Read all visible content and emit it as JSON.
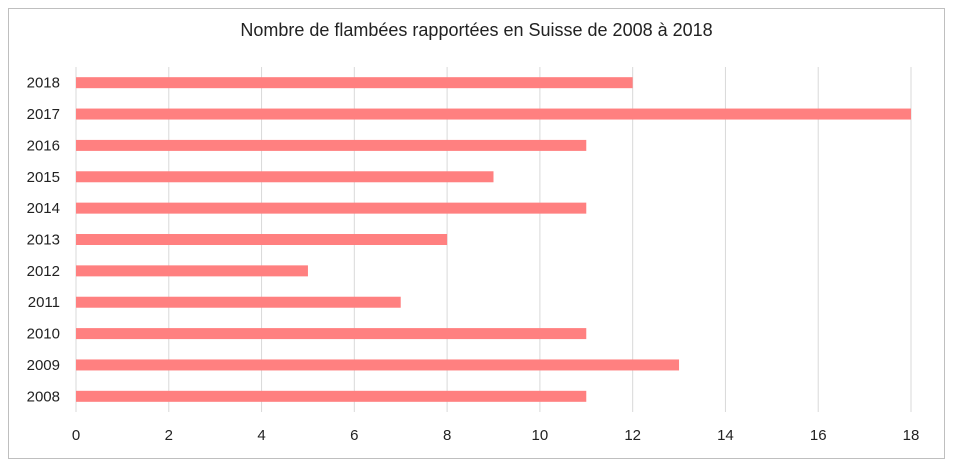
{
  "chart_data": {
    "type": "bar",
    "orientation": "horizontal",
    "title": "Nombre de flambées rapportées en Suisse de 2008 à 2018",
    "xlabel": "",
    "ylabel": "",
    "categories": [
      "2008",
      "2009",
      "2010",
      "2011",
      "2012",
      "2013",
      "2014",
      "2015",
      "2016",
      "2017",
      "2018"
    ],
    "values": [
      11,
      13,
      11,
      7,
      5,
      8,
      11,
      9,
      11,
      18,
      12
    ],
    "xlim": [
      0,
      18
    ],
    "xticks": [
      0,
      2,
      4,
      6,
      8,
      10,
      12,
      14,
      16,
      18
    ],
    "grid": true,
    "legend": "none",
    "bar_color": "#ff8080",
    "grid_color": "#d9d9d9"
  }
}
